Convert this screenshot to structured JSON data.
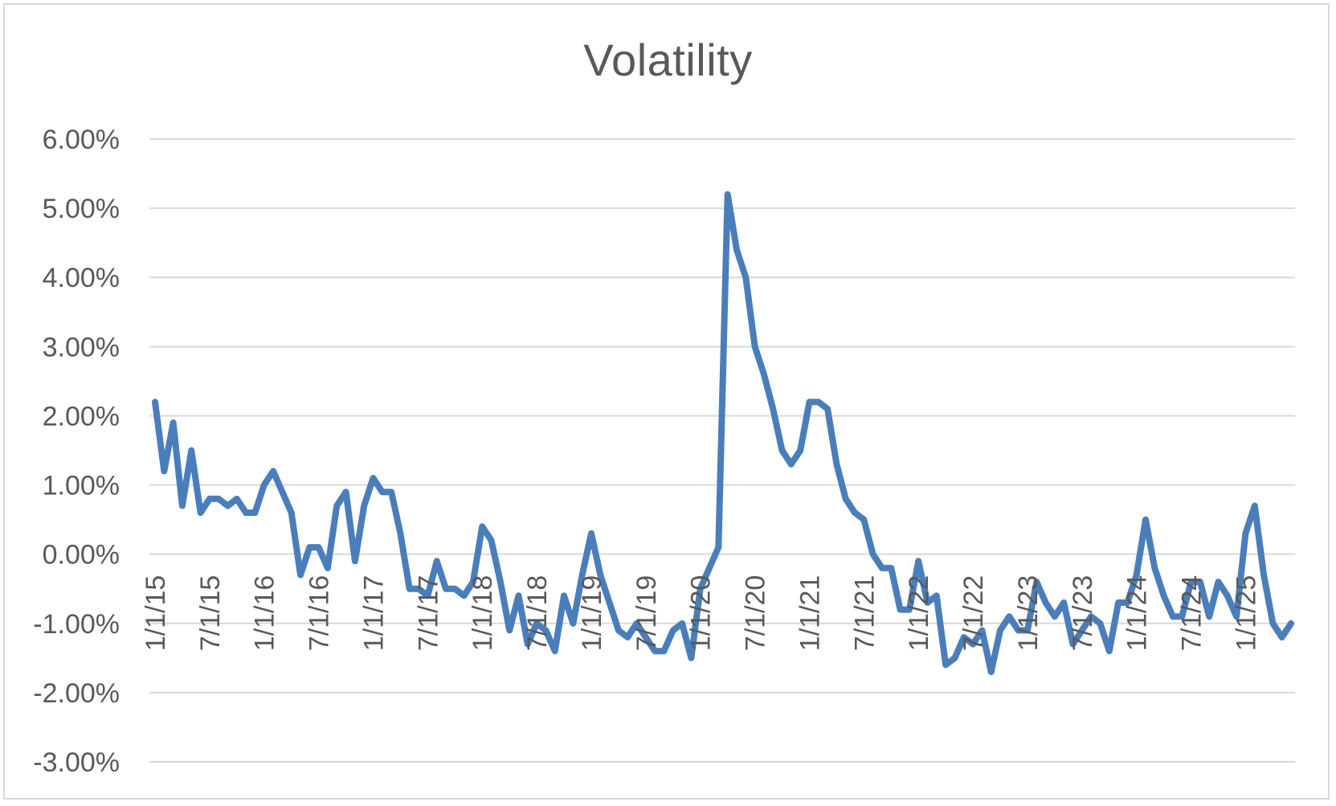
{
  "chart_data": {
    "type": "line",
    "title": "Volatility",
    "xlabel": "",
    "ylabel": "",
    "ylim": [
      -3,
      6
    ],
    "y_ticks": [
      "-3.00%",
      "-2.00%",
      "-1.00%",
      "0.00%",
      "1.00%",
      "2.00%",
      "3.00%",
      "4.00%",
      "5.00%",
      "6.00%"
    ],
    "x_ticks": [
      "1/1/15",
      "7/1/15",
      "1/1/16",
      "7/1/16",
      "1/1/17",
      "7/1/17",
      "1/1/18",
      "7/1/18",
      "1/1/19",
      "7/1/19",
      "1/1/20",
      "7/1/20",
      "1/1/21",
      "7/1/21",
      "1/1/22",
      "7/1/22",
      "1/1/23",
      "7/1/23",
      "1/1/24",
      "7/1/24",
      "1/1/25"
    ],
    "grid": true,
    "legend": "none",
    "line_color": "#4a7ebb",
    "series": [
      {
        "points": [
          [
            "2015-01",
            2.2
          ],
          [
            "2015-02",
            1.2
          ],
          [
            "2015-03",
            1.9
          ],
          [
            "2015-04",
            0.7
          ],
          [
            "2015-05",
            1.5
          ],
          [
            "2015-06",
            0.6
          ],
          [
            "2015-07",
            0.8
          ],
          [
            "2015-08",
            0.8
          ],
          [
            "2015-09",
            0.7
          ],
          [
            "2015-10",
            0.8
          ],
          [
            "2015-11",
            0.6
          ],
          [
            "2015-12",
            0.6
          ],
          [
            "2016-01",
            1.0
          ],
          [
            "2016-02",
            1.2
          ],
          [
            "2016-03",
            0.9
          ],
          [
            "2016-04",
            0.6
          ],
          [
            "2016-05",
            -0.3
          ],
          [
            "2016-06",
            0.1
          ],
          [
            "2016-07",
            0.1
          ],
          [
            "2016-08",
            -0.2
          ],
          [
            "2016-09",
            0.7
          ],
          [
            "2016-10",
            0.9
          ],
          [
            "2016-11",
            -0.1
          ],
          [
            "2016-12",
            0.7
          ],
          [
            "2017-01",
            1.1
          ],
          [
            "2017-02",
            0.9
          ],
          [
            "2017-03",
            0.9
          ],
          [
            "2017-04",
            0.3
          ],
          [
            "2017-05",
            -0.5
          ],
          [
            "2017-06",
            -0.5
          ],
          [
            "2017-07",
            -0.6
          ],
          [
            "2017-08",
            -0.1
          ],
          [
            "2017-09",
            -0.5
          ],
          [
            "2017-10",
            -0.5
          ],
          [
            "2017-11",
            -0.6
          ],
          [
            "2017-12",
            -0.4
          ],
          [
            "2018-01",
            0.4
          ],
          [
            "2018-02",
            0.2
          ],
          [
            "2018-03",
            -0.4
          ],
          [
            "2018-04",
            -1.1
          ],
          [
            "2018-05",
            -0.6
          ],
          [
            "2018-06",
            -1.3
          ],
          [
            "2018-07",
            -1.0
          ],
          [
            "2018-08",
            -1.1
          ],
          [
            "2018-09",
            -1.4
          ],
          [
            "2018-10",
            -0.6
          ],
          [
            "2018-11",
            -1.0
          ],
          [
            "2018-12",
            -0.3
          ],
          [
            "2019-01",
            0.3
          ],
          [
            "2019-02",
            -0.3
          ],
          [
            "2019-03",
            -0.7
          ],
          [
            "2019-04",
            -1.1
          ],
          [
            "2019-05",
            -1.2
          ],
          [
            "2019-06",
            -1.0
          ],
          [
            "2019-07",
            -1.2
          ],
          [
            "2019-08",
            -1.4
          ],
          [
            "2019-09",
            -1.4
          ],
          [
            "2019-10",
            -1.1
          ],
          [
            "2019-11",
            -1.0
          ],
          [
            "2019-12",
            -1.5
          ],
          [
            "2020-01",
            -0.5
          ],
          [
            "2020-02",
            -0.2
          ],
          [
            "2020-03",
            0.1
          ],
          [
            "2020-04",
            5.2
          ],
          [
            "2020-05",
            4.4
          ],
          [
            "2020-06",
            4.0
          ],
          [
            "2020-07",
            3.0
          ],
          [
            "2020-08",
            2.6
          ],
          [
            "2020-09",
            2.1
          ],
          [
            "2020-10",
            1.5
          ],
          [
            "2020-11",
            1.3
          ],
          [
            "2020-12",
            1.5
          ],
          [
            "2021-01",
            2.2
          ],
          [
            "2021-02",
            2.2
          ],
          [
            "2021-03",
            2.1
          ],
          [
            "2021-04",
            1.3
          ],
          [
            "2021-05",
            0.8
          ],
          [
            "2021-06",
            0.6
          ],
          [
            "2021-07",
            0.5
          ],
          [
            "2021-08",
            0.0
          ],
          [
            "2021-09",
            -0.2
          ],
          [
            "2021-10",
            -0.2
          ],
          [
            "2021-11",
            -0.8
          ],
          [
            "2021-12",
            -0.8
          ],
          [
            "2022-01",
            -0.1
          ],
          [
            "2022-02",
            -0.7
          ],
          [
            "2022-03",
            -0.6
          ],
          [
            "2022-04",
            -1.6
          ],
          [
            "2022-05",
            -1.5
          ],
          [
            "2022-06",
            -1.2
          ],
          [
            "2022-07",
            -1.3
          ],
          [
            "2022-08",
            -1.1
          ],
          [
            "2022-09",
            -1.7
          ],
          [
            "2022-10",
            -1.1
          ],
          [
            "2022-11",
            -0.9
          ],
          [
            "2022-12",
            -1.1
          ],
          [
            "2023-01",
            -1.1
          ],
          [
            "2023-02",
            -0.4
          ],
          [
            "2023-03",
            -0.7
          ],
          [
            "2023-04",
            -0.9
          ],
          [
            "2023-05",
            -0.7
          ],
          [
            "2023-06",
            -1.3
          ],
          [
            "2023-07",
            -1.1
          ],
          [
            "2023-08",
            -0.9
          ],
          [
            "2023-09",
            -1.0
          ],
          [
            "2023-10",
            -1.4
          ],
          [
            "2023-11",
            -0.7
          ],
          [
            "2023-12",
            -0.7
          ],
          [
            "2024-01",
            -0.3
          ],
          [
            "2024-02",
            0.5
          ],
          [
            "2024-03",
            -0.2
          ],
          [
            "2024-04",
            -0.6
          ],
          [
            "2024-05",
            -0.9
          ],
          [
            "2024-06",
            -0.9
          ],
          [
            "2024-07",
            -0.4
          ],
          [
            "2024-08",
            -0.4
          ],
          [
            "2024-09",
            -0.9
          ],
          [
            "2024-10",
            -0.4
          ],
          [
            "2024-11",
            -0.6
          ],
          [
            "2024-12",
            -0.9
          ],
          [
            "2025-01",
            0.3
          ],
          [
            "2025-02",
            0.7
          ],
          [
            "2025-03",
            -0.3
          ],
          [
            "2025-04",
            -1.0
          ],
          [
            "2025-05",
            -1.2
          ],
          [
            "2025-06",
            -1.0
          ]
        ]
      }
    ]
  }
}
